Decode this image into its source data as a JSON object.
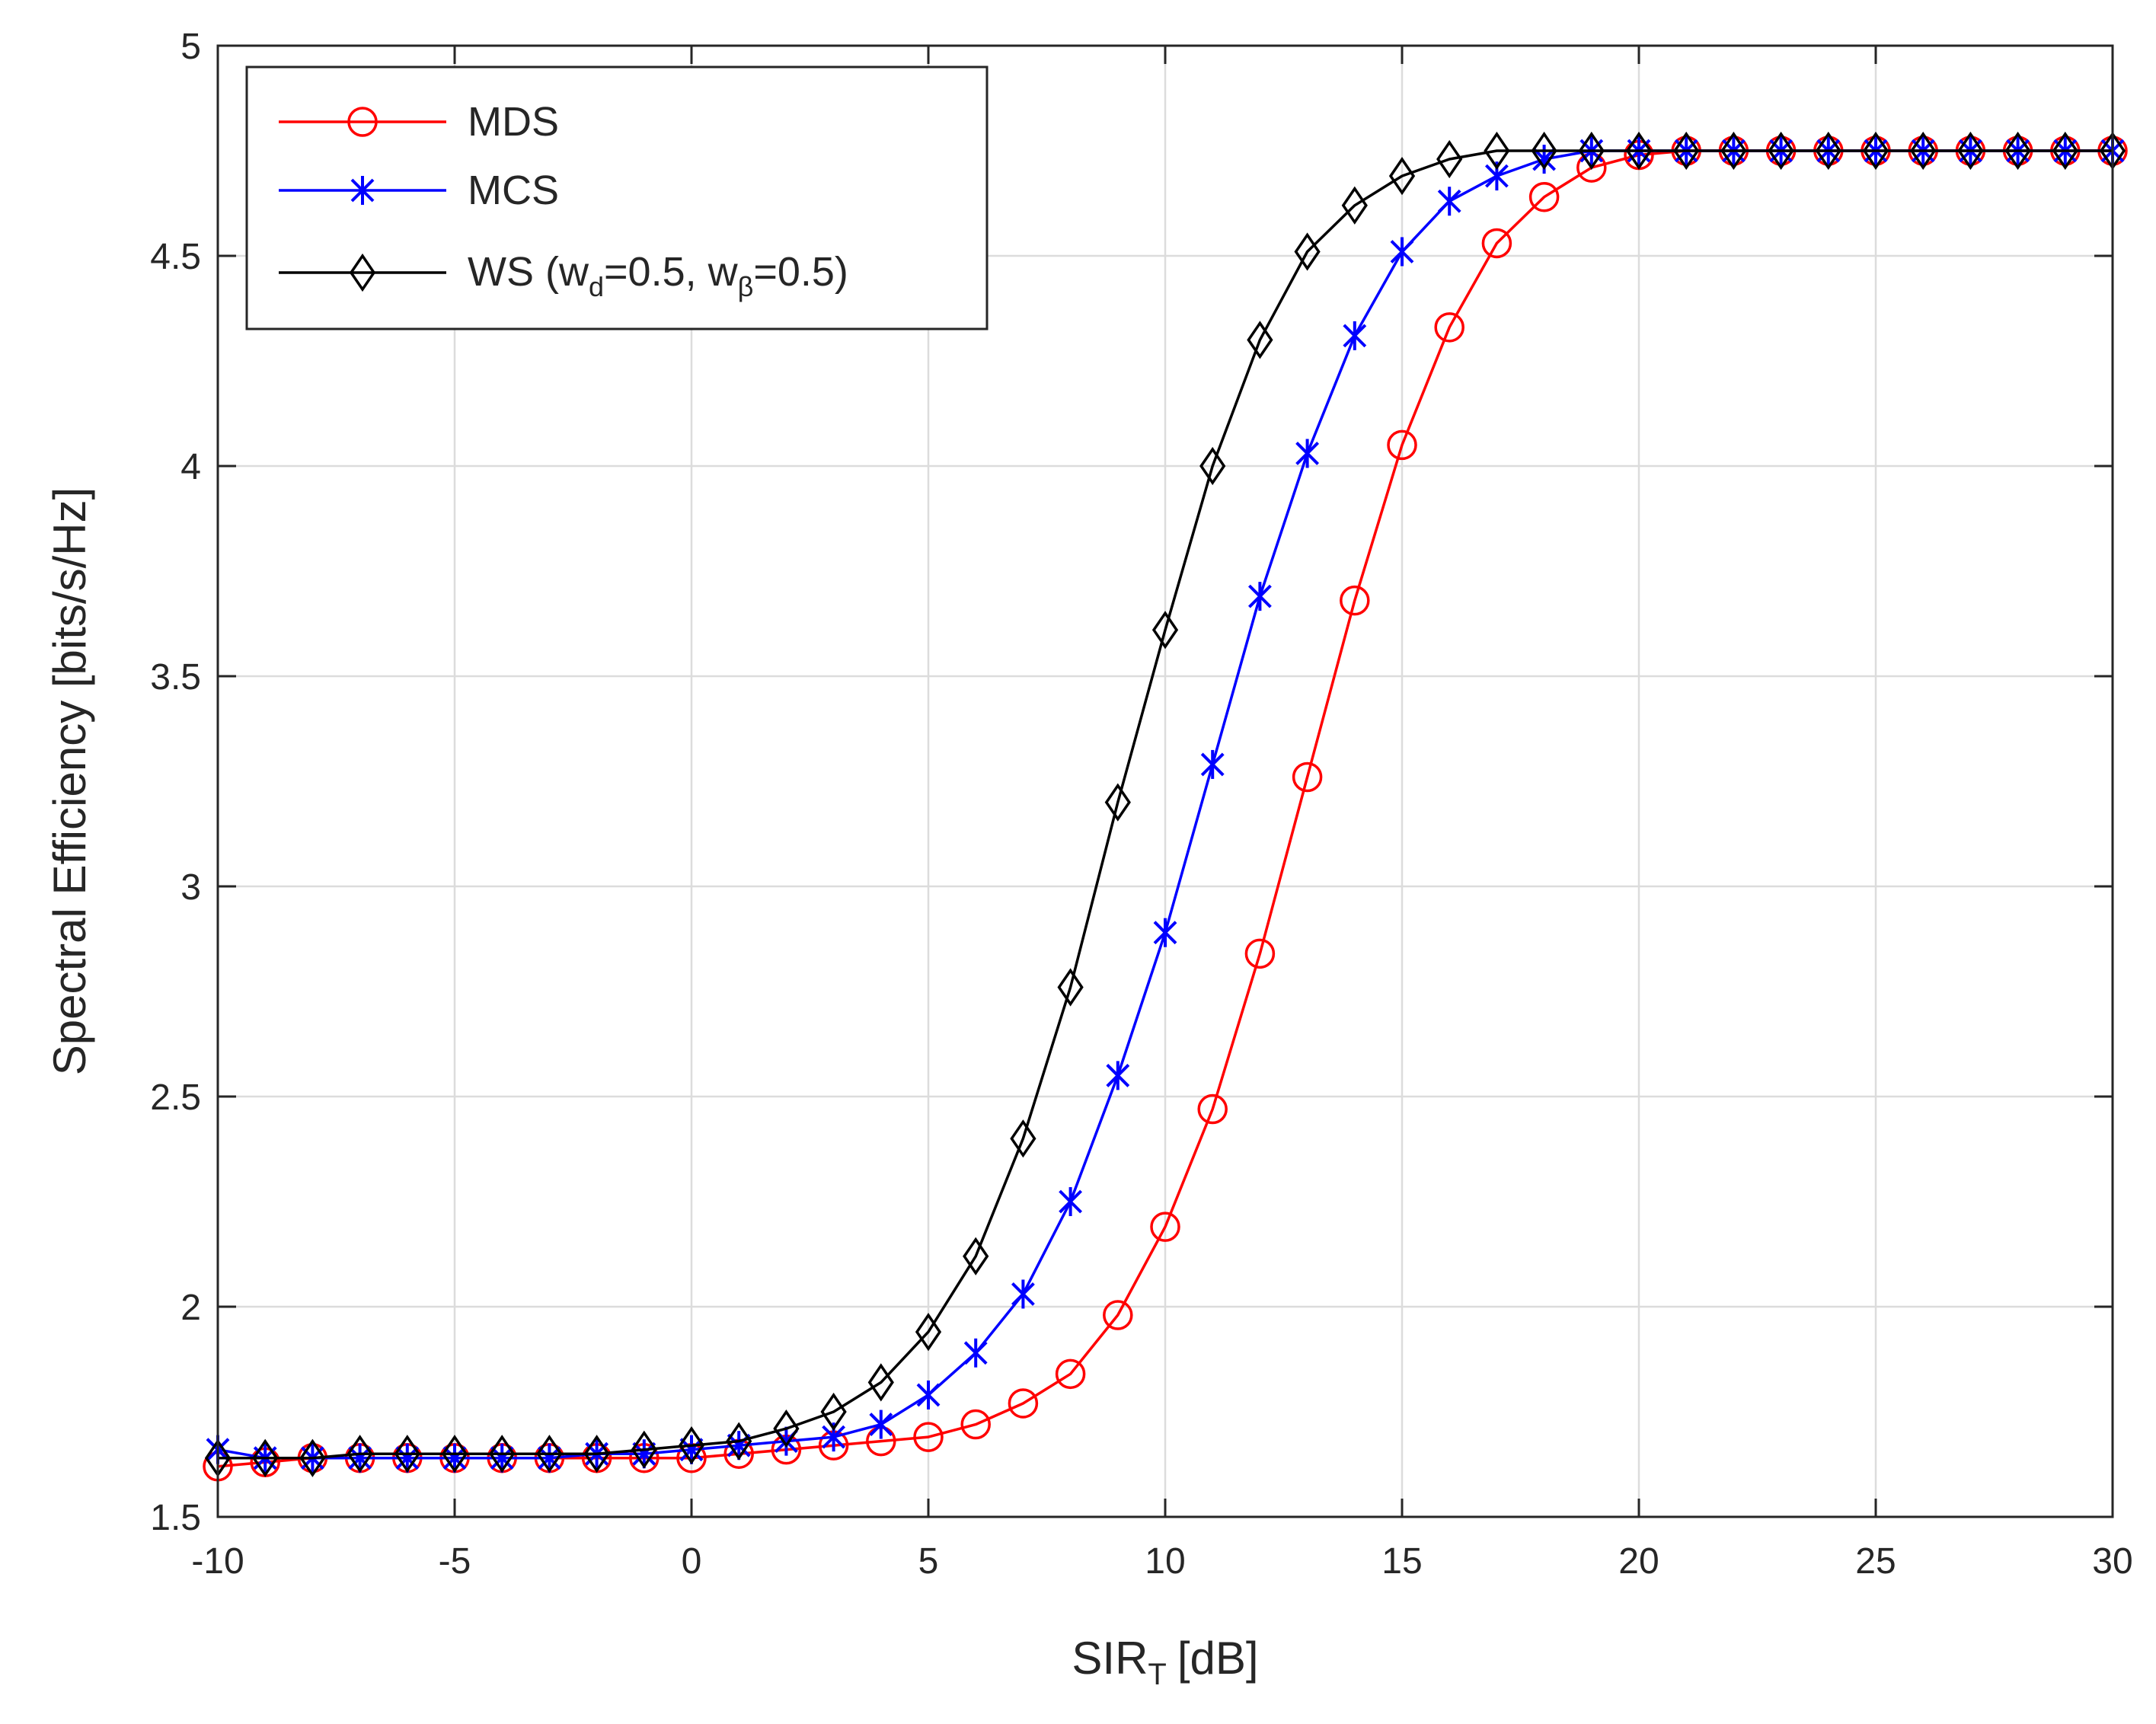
{
  "chart_data": {
    "type": "line",
    "title": "",
    "xlabel": "SIR",
    "xlabel_sub": "T",
    "xlabel_unit": "[dB]",
    "ylabel": "Spectral Efficiency [bits/s/Hz]",
    "xlim": [
      -10,
      30
    ],
    "ylim": [
      1.5,
      5
    ],
    "xticks": [
      -10,
      -5,
      0,
      5,
      10,
      15,
      20,
      25,
      30
    ],
    "xtick_labels": [
      "-10",
      "-5",
      "0",
      "5",
      "10",
      "15",
      "20",
      "25",
      "30"
    ],
    "yticks": [
      1.5,
      2,
      2.5,
      3,
      3.5,
      4,
      4.5,
      5
    ],
    "ytick_labels": [
      "1.5",
      "2",
      "2.5",
      "3",
      "3.5",
      "4",
      "4.5",
      "5"
    ],
    "grid": true,
    "legend_position": "top-left",
    "x": [
      -10,
      -9,
      -8,
      -7,
      -6,
      -5,
      -4,
      -3,
      -2,
      -1,
      0,
      1,
      2,
      3,
      4,
      5,
      6,
      7,
      8,
      9,
      10,
      11,
      12,
      13,
      14,
      15,
      16,
      17,
      18,
      19,
      20,
      21,
      22,
      23,
      24,
      25,
      26,
      27,
      28,
      29,
      30
    ],
    "series": [
      {
        "name": "MDS",
        "color": "#ff0000",
        "marker": "circle",
        "values": [
          1.62,
          1.63,
          1.64,
          1.64,
          1.64,
          1.64,
          1.64,
          1.64,
          1.64,
          1.64,
          1.64,
          1.65,
          1.66,
          1.67,
          1.68,
          1.69,
          1.72,
          1.77,
          1.84,
          1.98,
          2.19,
          2.47,
          2.84,
          3.26,
          3.68,
          4.05,
          4.33,
          4.53,
          4.64,
          4.71,
          4.74,
          4.75,
          4.75,
          4.75,
          4.75,
          4.75,
          4.75,
          4.75,
          4.75,
          4.75,
          4.75
        ]
      },
      {
        "name": "MCS",
        "color": "#0000ff",
        "marker": "asterisk",
        "values": [
          1.66,
          1.64,
          1.64,
          1.64,
          1.64,
          1.64,
          1.64,
          1.64,
          1.65,
          1.65,
          1.66,
          1.67,
          1.68,
          1.69,
          1.72,
          1.79,
          1.89,
          2.03,
          2.25,
          2.55,
          2.89,
          3.29,
          3.69,
          4.03,
          4.31,
          4.51,
          4.63,
          4.69,
          4.73,
          4.75,
          4.75,
          4.75,
          4.75,
          4.75,
          4.75,
          4.75,
          4.75,
          4.75,
          4.75,
          4.75,
          4.75
        ]
      },
      {
        "name": "WS (w_d=0.5, w_β=0.5)",
        "label_parts": [
          "WS (w",
          "d",
          "=0.5, w",
          "β",
          "=0.5)"
        ],
        "color": "#000000",
        "marker": "diamond",
        "values": [
          1.64,
          1.64,
          1.64,
          1.65,
          1.65,
          1.65,
          1.65,
          1.65,
          1.65,
          1.66,
          1.67,
          1.68,
          1.71,
          1.75,
          1.82,
          1.94,
          2.12,
          2.4,
          2.76,
          3.2,
          3.61,
          4.0,
          4.3,
          4.51,
          4.62,
          4.69,
          4.73,
          4.75,
          4.75,
          4.75,
          4.75,
          4.75,
          4.75,
          4.75,
          4.75,
          4.75,
          4.75,
          4.75,
          4.75,
          4.75,
          4.75
        ]
      }
    ]
  }
}
